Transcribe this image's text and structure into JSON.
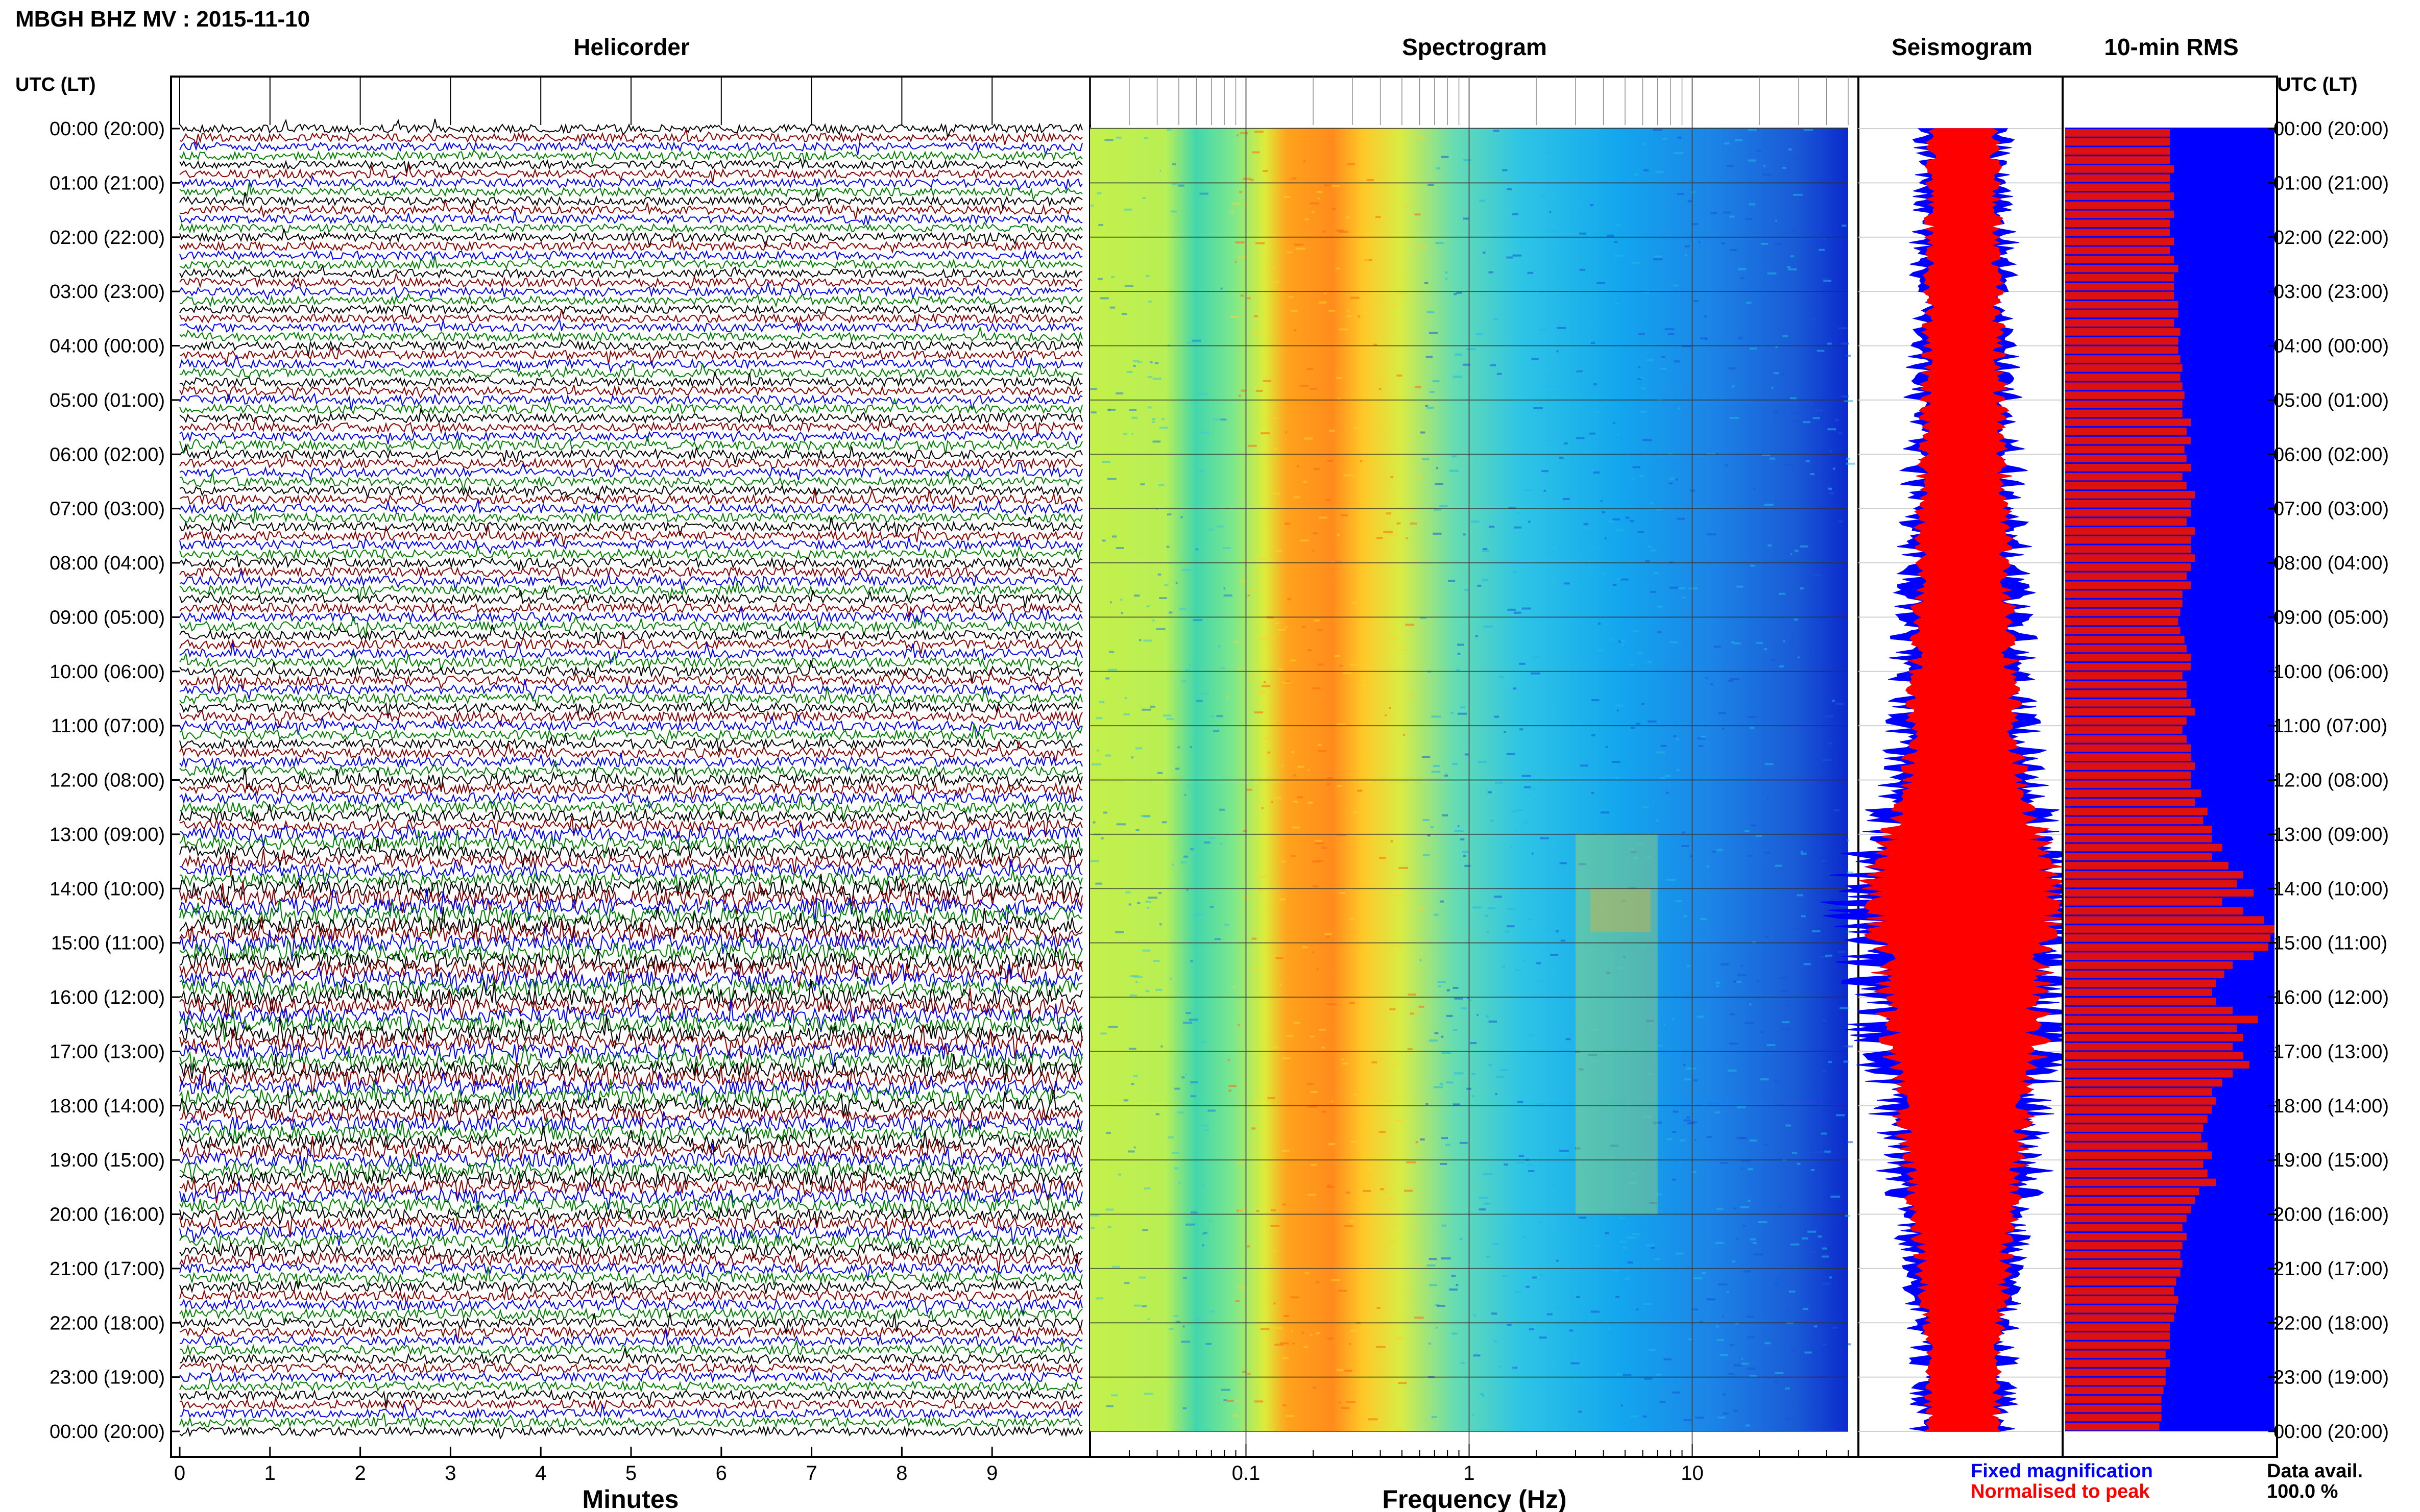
{
  "title": "MBGH BHZ MV : 2015-11-10",
  "panels": {
    "helicorder": "Helicorder",
    "spectrogram": "Spectrogram",
    "seismogram": "Seismogram",
    "rms": "10-min RMS"
  },
  "axis": {
    "utc_label": "UTC (LT)",
    "time_ticks": [
      "00:00 (20:00)",
      "01:00 (21:00)",
      "02:00 (22:00)",
      "03:00 (23:00)",
      "04:00 (00:00)",
      "05:00 (01:00)",
      "06:00 (02:00)",
      "07:00 (03:00)",
      "08:00 (04:00)",
      "09:00 (05:00)",
      "10:00 (06:00)",
      "11:00 (07:00)",
      "12:00 (08:00)",
      "13:00 (09:00)",
      "14:00 (10:00)",
      "15:00 (11:00)",
      "16:00 (12:00)",
      "17:00 (13:00)",
      "18:00 (14:00)",
      "19:00 (15:00)",
      "20:00 (16:00)",
      "21:00 (17:00)",
      "22:00 (18:00)",
      "23:00 (19:00)",
      "00:00 (20:00)"
    ],
    "minutes_ticks": [
      "0",
      "1",
      "2",
      "3",
      "4",
      "5",
      "6",
      "7",
      "8",
      "9"
    ],
    "minutes_label": "Minutes",
    "freq_ticks": [
      "0.1",
      "1",
      "10"
    ],
    "freq_label": "Frequency (Hz)"
  },
  "legend": {
    "fixed": "Fixed magnification",
    "normalised": "Normalised to peak",
    "fixed_color": "#0000ff",
    "normalised_color": "#ff0000"
  },
  "data_avail": {
    "label": "Data avail.",
    "value": "100.0 %"
  },
  "chart_data": [
    {
      "type": "line",
      "panel": "Helicorder",
      "xlabel": "Minutes",
      "xlim": [
        0,
        10
      ],
      "rows_per_hour": 6,
      "trace_colors": [
        "#000000",
        "#8b0000",
        "#0000ff",
        "#008000"
      ],
      "activity_by_hour": [
        1.0,
        1.0,
        1.0,
        1.0,
        1.05,
        1.1,
        1.1,
        1.1,
        1.15,
        1.15,
        1.2,
        1.2,
        1.4,
        1.7,
        2.3,
        2.3,
        2.2,
        2.1,
        1.9,
        1.9,
        1.6,
        1.3,
        1.15,
        1.1
      ]
    },
    {
      "type": "heatmap",
      "panel": "Spectrogram",
      "xlabel": "Frequency (Hz)",
      "xscale": "log",
      "xlim": [
        0.02,
        50
      ],
      "colormap": "jet",
      "peak_band_hz": [
        0.2,
        0.5
      ],
      "secondary_band_hz": [
        3,
        7
      ],
      "secondary_band_hours": [
        13,
        20
      ]
    },
    {
      "type": "area",
      "panel": "Seismogram",
      "series": [
        {
          "name": "Fixed magnification",
          "color": "#0000ff"
        },
        {
          "name": "Normalised to peak",
          "color": "#ff0000"
        }
      ],
      "envelope_by_hour": [
        0.9,
        0.9,
        0.95,
        0.95,
        1.0,
        1.05,
        1.1,
        1.15,
        1.2,
        1.25,
        1.35,
        1.4,
        1.6,
        2.0,
        2.6,
        2.3,
        2.2,
        2.0,
        1.7,
        1.6,
        1.3,
        1.15,
        1.0,
        0.95
      ]
    },
    {
      "type": "bar",
      "panel": "10-min RMS",
      "orientation": "horizontal",
      "bar_color": "#dd1111",
      "background_color": "#0000ff",
      "values_per_hour": [
        [
          0.5,
          0.5,
          0.5,
          0.5,
          0.52,
          0.5
        ],
        [
          0.5,
          0.52,
          0.5,
          0.52,
          0.5,
          0.5
        ],
        [
          0.52,
          0.5,
          0.52,
          0.54,
          0.52,
          0.52
        ],
        [
          0.52,
          0.54,
          0.54,
          0.52,
          0.55,
          0.54
        ],
        [
          0.54,
          0.55,
          0.56,
          0.55,
          0.56,
          0.57
        ],
        [
          0.56,
          0.56,
          0.6,
          0.58,
          0.6,
          0.57
        ],
        [
          0.58,
          0.6,
          0.56,
          0.58,
          0.62,
          0.6
        ],
        [
          0.6,
          0.58,
          0.62,
          0.6,
          0.6,
          0.62
        ],
        [
          0.6,
          0.58,
          0.6,
          0.56,
          0.56,
          0.55
        ],
        [
          0.54,
          0.55,
          0.57,
          0.58,
          0.6,
          0.6
        ],
        [
          0.56,
          0.58,
          0.58,
          0.6,
          0.62,
          0.58
        ],
        [
          0.56,
          0.58,
          0.6,
          0.6,
          0.62,
          0.6
        ],
        [
          0.6,
          0.65,
          0.62,
          0.68,
          0.66,
          0.7
        ],
        [
          0.7,
          0.75,
          0.7,
          0.78,
          0.85,
          0.82
        ],
        [
          0.9,
          0.75,
          0.85,
          0.95,
          1.0,
          0.98
        ],
        [
          0.97,
          0.9,
          0.8,
          0.76,
          0.72,
          0.7
        ],
        [
          0.72,
          0.8,
          0.92,
          0.82,
          0.85,
          0.8
        ],
        [
          0.85,
          0.88,
          0.8,
          0.75,
          0.7,
          0.72
        ],
        [
          0.7,
          0.68,
          0.66,
          0.65,
          0.68,
          0.7
        ],
        [
          0.66,
          0.68,
          0.72,
          0.64,
          0.62,
          0.6
        ],
        [
          0.58,
          0.56,
          0.58,
          0.56,
          0.55,
          0.56
        ],
        [
          0.55,
          0.53,
          0.52,
          0.54,
          0.53,
          0.52
        ],
        [
          0.5,
          0.5,
          0.5,
          0.48,
          0.5,
          0.48
        ],
        [
          0.48,
          0.47,
          0.46,
          0.46,
          0.46,
          0.45
        ]
      ]
    }
  ]
}
